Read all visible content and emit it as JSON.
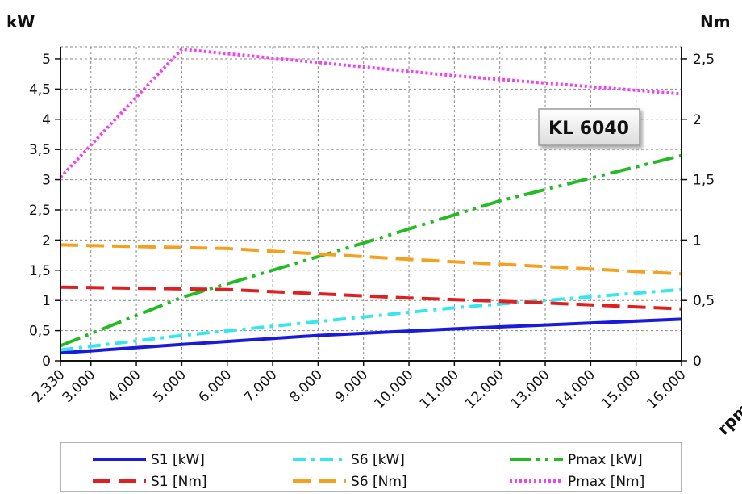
{
  "chart_data": {
    "type": "line",
    "title": "",
    "badge": "KL 6040",
    "left_axis": {
      "unit": "kW",
      "ylim": [
        0,
        5.2
      ],
      "ticks": [
        "0",
        "0,5",
        "1",
        "1,5",
        "2",
        "2,5",
        "3",
        "3,5",
        "4",
        "4,5",
        "5"
      ],
      "tick_values": [
        0,
        0.5,
        1,
        1.5,
        2,
        2.5,
        3,
        3.5,
        4,
        4.5,
        5
      ]
    },
    "right_axis": {
      "unit": "Nm",
      "ylim": [
        0,
        2.6
      ],
      "ticks": [
        "0",
        "0,5",
        "1",
        "1,5",
        "2",
        "2,5"
      ],
      "tick_values": [
        0,
        0.5,
        1,
        1.5,
        2,
        2.5
      ]
    },
    "x_axis": {
      "unit": "rpm",
      "xlim": [
        2330,
        16000
      ],
      "ticks": [
        "2.330",
        "3.000",
        "4.000",
        "5.000",
        "6.000",
        "7.000",
        "8.000",
        "9.000",
        "10.000",
        "11.000",
        "12.000",
        "13.000",
        "14.000",
        "15.000",
        "16.000"
      ],
      "tick_values": [
        2330,
        3000,
        4000,
        5000,
        6000,
        7000,
        8000,
        9000,
        10000,
        11000,
        12000,
        13000,
        14000,
        15000,
        16000
      ]
    },
    "grid": true,
    "legend_position": "bottom",
    "series": [
      {
        "name": "S1 [kW]",
        "axis": "left",
        "color": "#1a1adb",
        "style": "solid",
        "points": [
          [
            2330,
            0.13
          ],
          [
            5000,
            0.27
          ],
          [
            8000,
            0.42
          ],
          [
            11000,
            0.53
          ],
          [
            16000,
            0.69
          ]
        ]
      },
      {
        "name": "S6 [kW]",
        "axis": "left",
        "color": "#33e6f0",
        "style": "dashdot",
        "points": [
          [
            2330,
            0.18
          ],
          [
            5000,
            0.42
          ],
          [
            8000,
            0.65
          ],
          [
            11000,
            0.88
          ],
          [
            16000,
            1.18
          ]
        ]
      },
      {
        "name": "Pmax [kW]",
        "axis": "left",
        "color": "#22bb22",
        "style": "dashdotdot",
        "points": [
          [
            2330,
            0.25
          ],
          [
            5000,
            1.05
          ],
          [
            9000,
            1.95
          ],
          [
            12000,
            2.65
          ],
          [
            16000,
            3.4
          ]
        ]
      },
      {
        "name": "S1 [Nm]",
        "axis": "right",
        "color": "#e02020",
        "style": "dash",
        "points": [
          [
            2330,
            0.61
          ],
          [
            6000,
            0.59
          ],
          [
            10000,
            0.52
          ],
          [
            13000,
            0.48
          ],
          [
            16000,
            0.43
          ]
        ]
      },
      {
        "name": "S6 [Nm]",
        "axis": "right",
        "color": "#f5a020",
        "style": "dash",
        "points": [
          [
            2330,
            0.96
          ],
          [
            6000,
            0.93
          ],
          [
            10000,
            0.84
          ],
          [
            13000,
            0.78
          ],
          [
            16000,
            0.72
          ]
        ]
      },
      {
        "name": "Pmax [Nm]",
        "axis": "right",
        "color": "#ee44ee",
        "style": "dot",
        "points": [
          [
            2330,
            1.52
          ],
          [
            5000,
            2.58
          ],
          [
            8000,
            2.47
          ],
          [
            11000,
            2.36
          ],
          [
            16000,
            2.21
          ]
        ]
      }
    ]
  }
}
